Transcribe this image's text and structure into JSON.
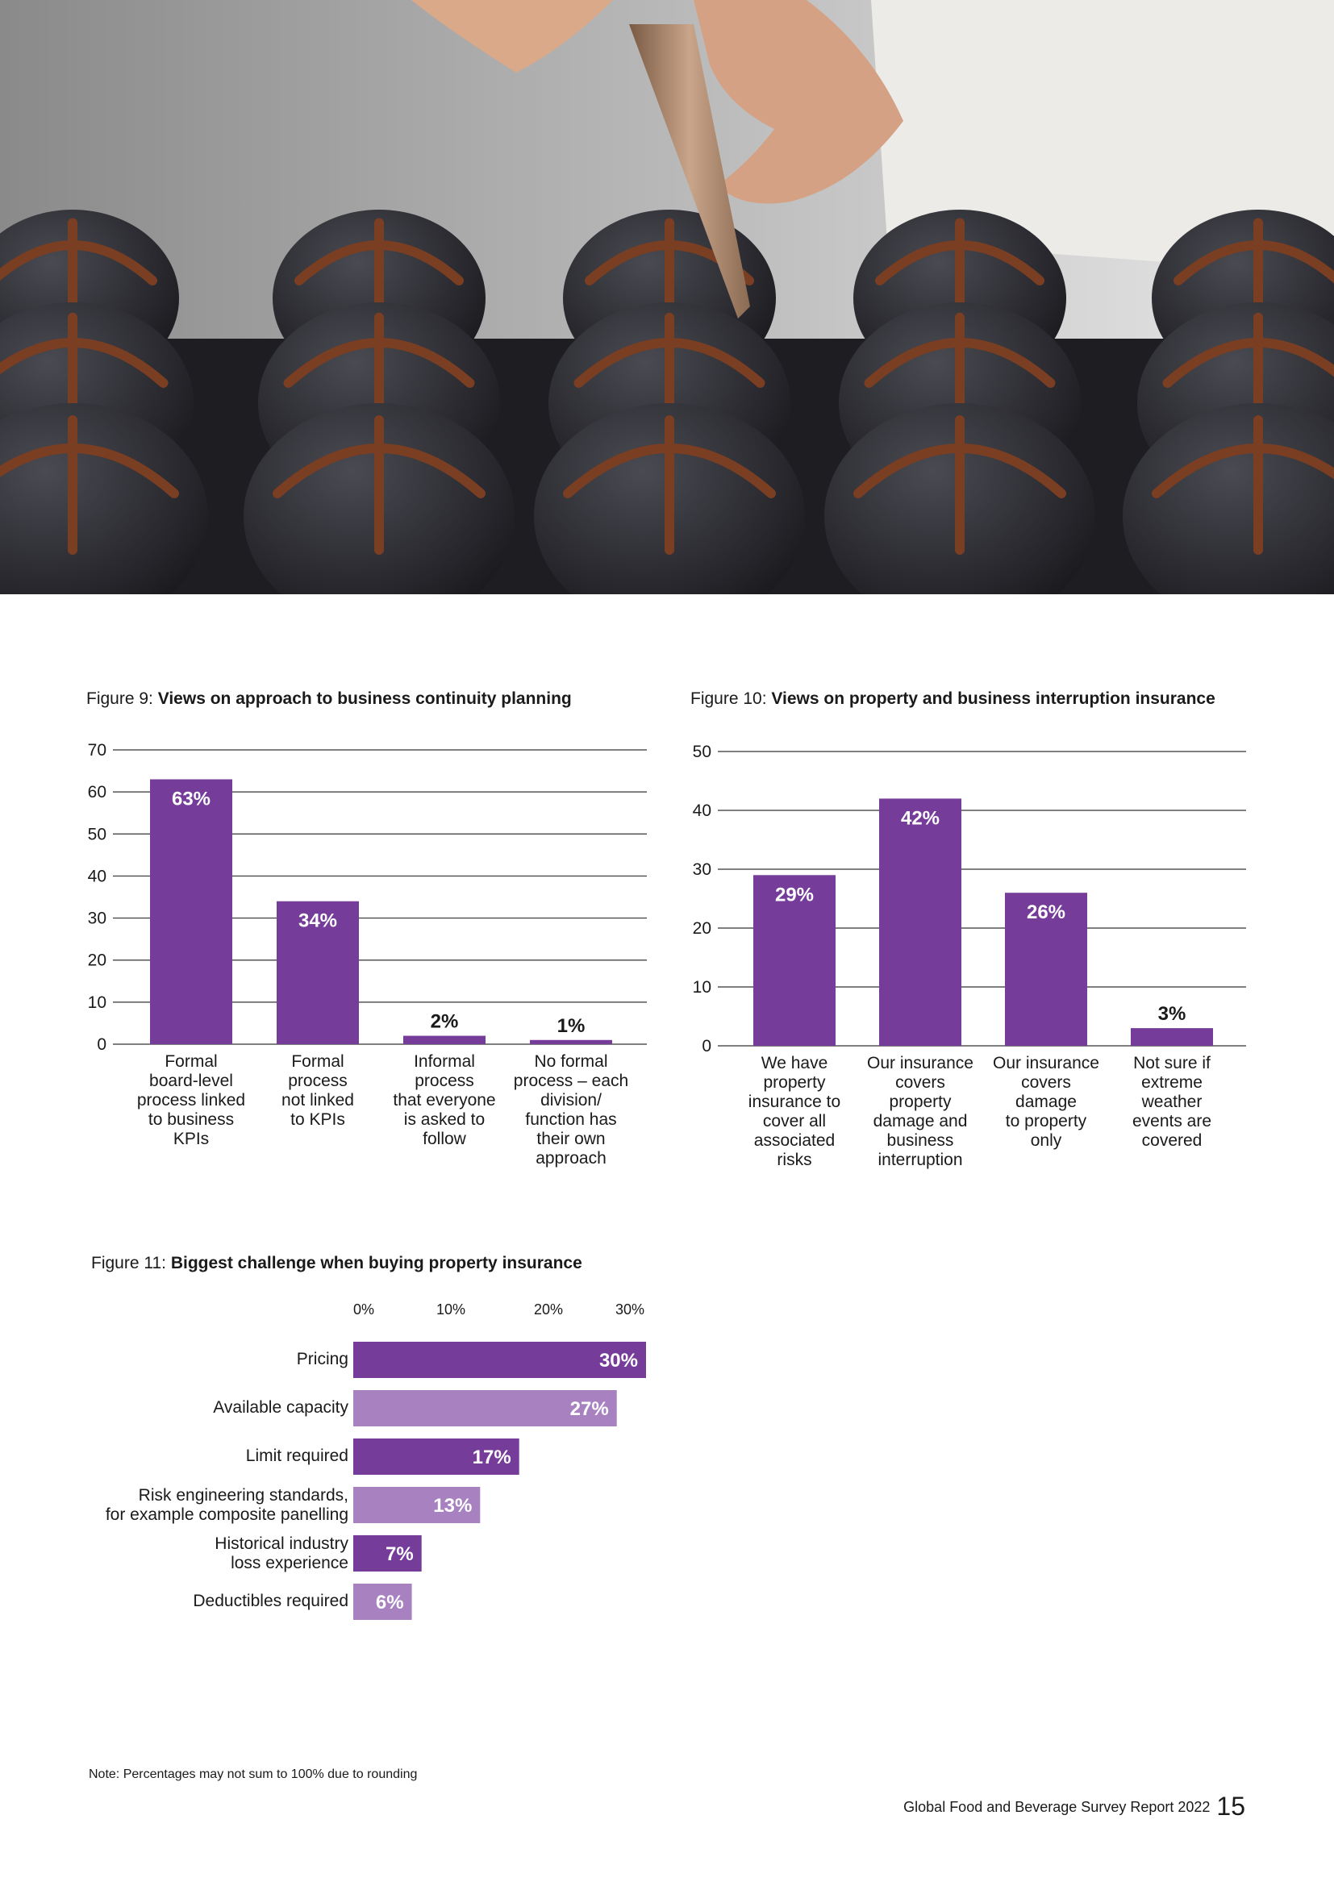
{
  "colors": {
    "purple": "#763c9a",
    "lilac": "#a781c0",
    "axis": "#1a1a1a",
    "grid": "#333333"
  },
  "photo": {
    "icon": "chocolate-piping-photo"
  },
  "figure9": {
    "prefix": "Figure 9:",
    "title": "Views on approach to business continuity planning"
  },
  "figure10": {
    "prefix": "Figure 10:",
    "title": "Views on property and business interruption insurance"
  },
  "figure11": {
    "prefix": "Figure 11:",
    "title": "Biggest challenge when buying property insurance"
  },
  "chart_data": [
    {
      "type": "bar",
      "title": "Figure 9: Views on approach to business continuity planning",
      "categories": [
        "Formal\nboard-level\nprocess linked\nto business\nKPIs",
        "Formal\nprocess\nnot linked\nto KPIs",
        "Informal\nprocess\nthat everyone\nis asked to\nfollow",
        "No formal\nprocess – each\ndivision/\nfunction has\ntheir own\napproach"
      ],
      "values": [
        63,
        34,
        2,
        1
      ],
      "labels": [
        "63%",
        "34%",
        "2%",
        "1%"
      ],
      "ylim": [
        0,
        70
      ],
      "yticks": [
        0,
        10,
        20,
        30,
        40,
        50,
        60,
        70
      ],
      "grid": true
    },
    {
      "type": "bar",
      "title": "Figure 10: Views on property and business interruption insurance",
      "categories": [
        "We have\nproperty\ninsurance to\ncover all\nassociated\nrisks",
        "Our insurance\ncovers\nproperty\ndamage and\nbusiness\ninterruption",
        "Our insurance\ncovers\ndamage\nto property\nonly",
        "Not sure if\nextreme\nweather\nevents are\ncovered"
      ],
      "values": [
        29,
        42,
        26,
        3
      ],
      "labels": [
        "29%",
        "42%",
        "26%",
        "3%"
      ],
      "ylim": [
        0,
        50
      ],
      "yticks": [
        0,
        10,
        20,
        30,
        40,
        50
      ],
      "grid": true
    },
    {
      "type": "bar",
      "orientation": "horizontal",
      "title": "Figure 11: Biggest challenge when buying property insurance",
      "categories": [
        "Pricing",
        "Available capacity",
        "Limit required",
        "Risk engineering standards,\nfor example composite panelling",
        "Historical industry\nloss experience",
        "Deductibles required"
      ],
      "values": [
        30,
        27,
        17,
        13,
        7,
        6
      ],
      "labels": [
        "30%",
        "27%",
        "17%",
        "13%",
        "7%",
        "6%"
      ],
      "xlim": [
        0,
        30
      ],
      "xticks": [
        "0%",
        "10%",
        "20%",
        "30%"
      ],
      "grid": false
    }
  ],
  "note": "Note: Percentages may not sum to 100% due to rounding",
  "footer": {
    "report": "Global Food and Beverage Survey Report 2022",
    "page": "15"
  }
}
